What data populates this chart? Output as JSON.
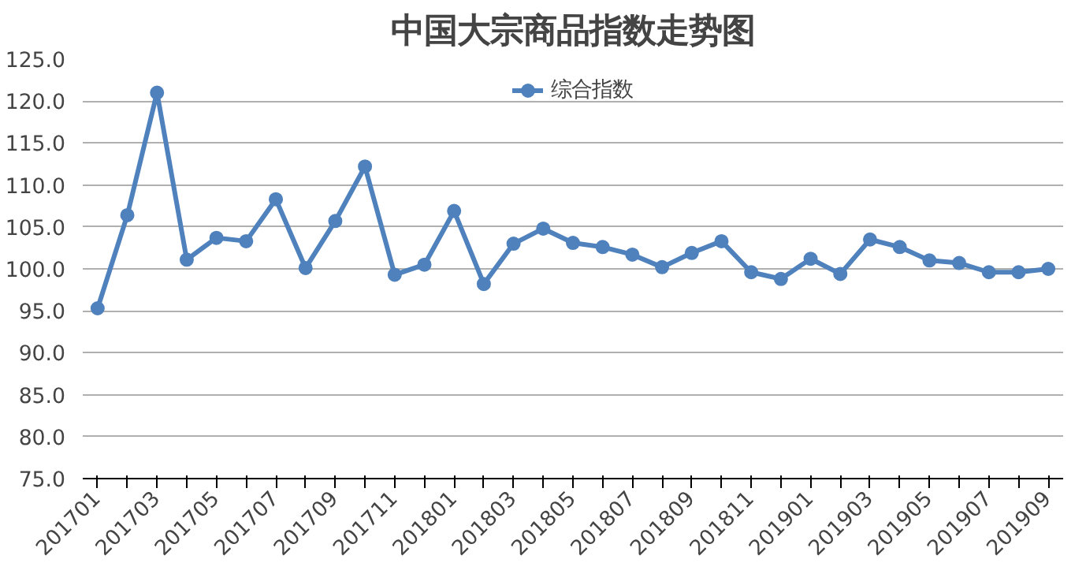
{
  "chart_data": {
    "type": "line",
    "title": "中国大宗商品指数走势图",
    "categories": [
      "201701",
      null,
      "201703",
      null,
      "201705",
      null,
      "201707",
      null,
      "201709",
      null,
      "201711",
      null,
      "201801",
      null,
      "201803",
      null,
      "201805",
      null,
      "201807",
      null,
      "201809",
      null,
      "201811",
      null,
      "201901",
      null,
      "201903",
      null,
      "201905",
      null,
      "201907",
      null,
      "201909"
    ],
    "series": [
      {
        "name": "综合指数",
        "color": "#4f81bd",
        "values": [
          95.3,
          106.4,
          121.0,
          101.1,
          103.7,
          103.3,
          108.3,
          100.1,
          105.7,
          112.2,
          99.3,
          100.5,
          106.9,
          98.2,
          103.0,
          104.8,
          103.1,
          102.6,
          101.7,
          100.2,
          101.9,
          103.3,
          99.6,
          98.8,
          101.2,
          99.4,
          103.5,
          102.6,
          101.0,
          100.7,
          99.6,
          99.6,
          100.0
        ]
      }
    ],
    "ylim": [
      75,
      125
    ],
    "yticks": [
      {
        "value": 75,
        "label": "75.0"
      },
      {
        "value": 80,
        "label": "80.0"
      },
      {
        "value": 85,
        "label": "85.0"
      },
      {
        "value": 90,
        "label": "90.0"
      },
      {
        "value": 95,
        "label": "95.0"
      },
      {
        "value": 100,
        "label": "100.0"
      },
      {
        "value": 105,
        "label": "105.0"
      },
      {
        "value": 110,
        "label": "110.0"
      },
      {
        "value": 115,
        "label": "115.0"
      },
      {
        "value": 120,
        "label": "120.0"
      },
      {
        "value": 125,
        "label": "125.0"
      }
    ],
    "grid": "y",
    "legend": "top",
    "marker": "circle",
    "line_style": "solid"
  }
}
